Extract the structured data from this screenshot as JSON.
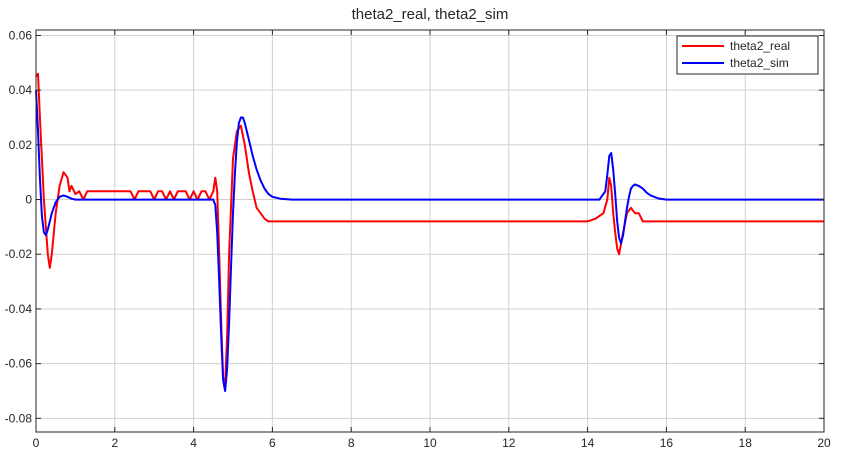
{
  "chart_data": {
    "type": "line",
    "title": "theta2_real, theta2_sim",
    "xlabel": "",
    "ylabel": "",
    "xlim": [
      0,
      20
    ],
    "ylim": [
      -0.085,
      0.062
    ],
    "xticks": [
      0,
      2,
      4,
      6,
      8,
      10,
      12,
      14,
      16,
      18,
      20
    ],
    "yticks": [
      -0.08,
      -0.06,
      -0.04,
      -0.02,
      0,
      0.02,
      0.04,
      0.06
    ],
    "xtick_labels": [
      "0",
      "2",
      "4",
      "6",
      "8",
      "10",
      "12",
      "14",
      "16",
      "18",
      "20"
    ],
    "ytick_labels": [
      "-0.08",
      "-0.06",
      "-0.04",
      "-0.02",
      "0",
      "0.02",
      "0.04",
      "0.06"
    ],
    "grid": true,
    "legend_position": "top-right",
    "series": [
      {
        "name": "theta2_real",
        "color": "#ff0000",
        "x": [
          0,
          0.05,
          0.1,
          0.2,
          0.3,
          0.35,
          0.4,
          0.5,
          0.6,
          0.7,
          0.8,
          0.85,
          0.9,
          1.0,
          1.1,
          1.2,
          1.3,
          1.4,
          1.5,
          1.6,
          1.7,
          1.8,
          1.9,
          2.0,
          2.1,
          2.2,
          2.3,
          2.4,
          2.5,
          2.6,
          2.7,
          2.8,
          2.9,
          3.0,
          3.1,
          3.2,
          3.3,
          3.4,
          3.5,
          3.6,
          3.7,
          3.8,
          3.9,
          4.0,
          4.1,
          4.2,
          4.3,
          4.4,
          4.5,
          4.55,
          4.6,
          4.65,
          4.7,
          4.75,
          4.8,
          4.85,
          4.9,
          5.0,
          5.1,
          5.2,
          5.3,
          5.4,
          5.5,
          5.6,
          5.7,
          5.8,
          5.9,
          6.0,
          6.2,
          6.4,
          6.6,
          6.8,
          7.0,
          7.5,
          8.0,
          8.5,
          9.0,
          9.5,
          10.0,
          10.5,
          11.0,
          11.5,
          12.0,
          12.5,
          13.0,
          13.5,
          14.0,
          14.2,
          14.4,
          14.5,
          14.55,
          14.6,
          14.65,
          14.7,
          14.75,
          14.8,
          14.9,
          15.0,
          15.1,
          15.2,
          15.3,
          15.4,
          15.5,
          15.6,
          15.8,
          16.0,
          16.5,
          17.0,
          17.5,
          18.0,
          18.5,
          19.0,
          19.5,
          20.0
        ],
        "values": [
          0.045,
          0.046,
          0.03,
          0.0,
          -0.02,
          -0.025,
          -0.02,
          -0.005,
          0.005,
          0.01,
          0.008,
          0.003,
          0.005,
          0.002,
          0.003,
          0.0,
          0.003,
          0.003,
          0.003,
          0.003,
          0.003,
          0.003,
          0.003,
          0.003,
          0.003,
          0.003,
          0.003,
          0.003,
          0.0,
          0.003,
          0.003,
          0.003,
          0.003,
          0.0,
          0.003,
          0.003,
          0.0,
          0.003,
          0.0,
          0.003,
          0.003,
          0.003,
          0.0,
          0.003,
          0.0,
          0.003,
          0.003,
          0.0,
          0.003,
          0.008,
          0.003,
          -0.02,
          -0.045,
          -0.065,
          -0.068,
          -0.05,
          -0.02,
          0.015,
          0.025,
          0.027,
          0.02,
          0.01,
          0.003,
          -0.003,
          -0.005,
          -0.007,
          -0.008,
          -0.008,
          -0.008,
          -0.008,
          -0.008,
          -0.008,
          -0.008,
          -0.008,
          -0.008,
          -0.008,
          -0.008,
          -0.008,
          -0.008,
          -0.008,
          -0.008,
          -0.008,
          -0.008,
          -0.008,
          -0.008,
          -0.008,
          -0.008,
          -0.007,
          -0.005,
          0.0,
          0.008,
          0.005,
          -0.005,
          -0.012,
          -0.018,
          -0.02,
          -0.012,
          -0.005,
          -0.003,
          -0.005,
          -0.005,
          -0.008,
          -0.008,
          -0.008,
          -0.008,
          -0.008,
          -0.008,
          -0.008,
          -0.008,
          -0.008,
          -0.008,
          -0.008,
          -0.008,
          -0.008
        ]
      },
      {
        "name": "theta2_sim",
        "color": "#0000ff",
        "x": [
          0,
          0.05,
          0.1,
          0.15,
          0.2,
          0.25,
          0.3,
          0.35,
          0.4,
          0.5,
          0.6,
          0.7,
          0.8,
          0.9,
          1.0,
          1.2,
          1.5,
          2.0,
          3.0,
          4.0,
          4.3,
          4.4,
          4.5,
          4.55,
          4.6,
          4.65,
          4.7,
          4.75,
          4.8,
          4.85,
          4.9,
          4.95,
          5.0,
          5.05,
          5.1,
          5.15,
          5.2,
          5.25,
          5.3,
          5.4,
          5.5,
          5.6,
          5.7,
          5.8,
          5.9,
          6.0,
          6.2,
          6.5,
          7.0,
          8.0,
          10.0,
          12.0,
          14.0,
          14.3,
          14.45,
          14.5,
          14.55,
          14.6,
          14.65,
          14.7,
          14.75,
          14.8,
          14.85,
          14.9,
          14.95,
          15.0,
          15.05,
          15.1,
          15.15,
          15.2,
          15.3,
          15.4,
          15.5,
          15.6,
          15.8,
          16.0,
          17.0,
          18.0,
          20.0
        ],
        "values": [
          0.04,
          0.025,
          0.008,
          -0.006,
          -0.012,
          -0.013,
          -0.011,
          -0.008,
          -0.005,
          -0.001,
          0.001,
          0.0015,
          0.001,
          0.0003,
          0.0,
          0.0,
          0.0,
          0.0,
          0.0,
          0.0,
          0.0,
          0.0,
          0.0,
          -0.002,
          -0.012,
          -0.03,
          -0.05,
          -0.066,
          -0.07,
          -0.062,
          -0.045,
          -0.025,
          -0.005,
          0.01,
          0.021,
          0.028,
          0.03,
          0.03,
          0.028,
          0.022,
          0.016,
          0.011,
          0.007,
          0.004,
          0.002,
          0.001,
          0.0003,
          0.0,
          0.0,
          0.0,
          0.0,
          0.0,
          0.0,
          0.0,
          0.003,
          0.009,
          0.016,
          0.017,
          0.011,
          0.002,
          -0.008,
          -0.014,
          -0.016,
          -0.013,
          -0.008,
          -0.003,
          0.001,
          0.004,
          0.005,
          0.0055,
          0.005,
          0.004,
          0.0025,
          0.0015,
          0.0004,
          0.0,
          0.0,
          0.0,
          0.0
        ]
      }
    ]
  }
}
